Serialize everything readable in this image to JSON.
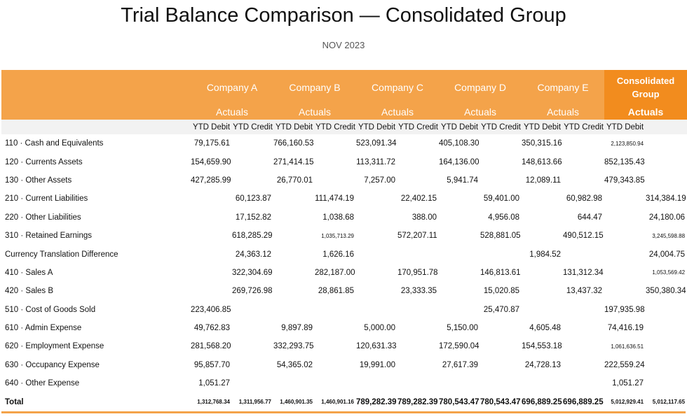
{
  "title": "Trial Balance Comparison — Consolidated Group",
  "subtitle": "NOV 2023",
  "companies": [
    {
      "name": "Company A",
      "scenario": "Actuals"
    },
    {
      "name": "Company B",
      "scenario": "Actuals"
    },
    {
      "name": "Company C",
      "scenario": "Actuals"
    },
    {
      "name": "Company D",
      "scenario": "Actuals"
    },
    {
      "name": "Company E",
      "scenario": "Actuals"
    },
    {
      "name": "Consolidated Group",
      "scenario": "Actuals"
    }
  ],
  "subheaders": [
    "YTD Debit",
    "YTD Credit",
    "YTD Debit",
    "YTD Credit",
    "YTD Debit",
    "YTD Credit",
    "YTD Debit",
    "YTD Credit",
    "YTD Debit",
    "YTD Credit",
    "YTD Debit",
    ""
  ],
  "rows": [
    {
      "label": "110 · Cash and Equivalents",
      "values": [
        "79,175.61",
        "",
        "766,160.53",
        "",
        "523,091.34",
        "",
        "405,108.30",
        "",
        "350,315.16",
        "",
        "2,123,850.94",
        ""
      ]
    },
    {
      "label": "120 · Currents Assets",
      "values": [
        "154,659.90",
        "",
        "271,414.15",
        "",
        "113,311.72",
        "",
        "164,136.00",
        "",
        "148,613.66",
        "",
        "852,135.43",
        ""
      ]
    },
    {
      "label": "130 · Other Assets",
      "values": [
        "427,285.99",
        "",
        "26,770.01",
        "",
        "7,257.00",
        "",
        "5,941.74",
        "",
        "12,089.11",
        "",
        "479,343.85",
        ""
      ]
    },
    {
      "label": "210 · Current Liabilities",
      "values": [
        "",
        "60,123.87",
        "",
        "111,474.19",
        "",
        "22,402.15",
        "",
        "59,401.00",
        "",
        "60,982.98",
        "",
        "314,384.19"
      ]
    },
    {
      "label": "220 · Other Liabilities",
      "values": [
        "",
        "17,152.82",
        "",
        "1,038.68",
        "",
        "388.00",
        "",
        "4,956.08",
        "",
        "644.47",
        "",
        "24,180.06"
      ]
    },
    {
      "label": "310 · Retained Earnings",
      "values": [
        "",
        "618,285.29",
        "",
        "1,035,713.29",
        "",
        "572,207.11",
        "",
        "528,881.05",
        "",
        "490,512.15",
        "",
        "3,245,598.88"
      ]
    },
    {
      "label": "Currency Translation Difference",
      "values": [
        "",
        "24,363.12",
        "",
        "1,626.16",
        "",
        "",
        "",
        "",
        "1,984.52",
        "",
        "",
        "24,004.75"
      ]
    },
    {
      "label": "410 · Sales A",
      "values": [
        "",
        "322,304.69",
        "",
        "282,187.00",
        "",
        "170,951.78",
        "",
        "146,813.61",
        "",
        "131,312.34",
        "",
        "1,053,569.42"
      ]
    },
    {
      "label": "420 · Sales B",
      "values": [
        "",
        "269,726.98",
        "",
        "28,861.85",
        "",
        "23,333.35",
        "",
        "15,020.85",
        "",
        "13,437.32",
        "",
        "350,380.34"
      ]
    },
    {
      "label": "510 · Cost of Goods Sold",
      "values": [
        "223,406.85",
        "",
        "",
        "",
        "",
        "",
        "",
        "25,470.87",
        "",
        "",
        "197,935.98",
        ""
      ]
    },
    {
      "label": "610 · Admin Expense",
      "values": [
        "49,762.83",
        "",
        "9,897.89",
        "",
        "5,000.00",
        "",
        "5,150.00",
        "",
        "4,605.48",
        "",
        "74,416.19",
        ""
      ]
    },
    {
      "label": "620 · Employment Expense",
      "values": [
        "281,568.20",
        "",
        "332,293.75",
        "",
        "120,631.33",
        "",
        "172,590.04",
        "",
        "154,553.18",
        "",
        "1,061,636.51",
        ""
      ]
    },
    {
      "label": "630 · Occupancy Expense",
      "values": [
        "95,857.70",
        "",
        "54,365.02",
        "",
        "19,991.00",
        "",
        "27,617.39",
        "",
        "24,728.13",
        "",
        "222,559.24",
        ""
      ]
    },
    {
      "label": "640 · Other Expense",
      "values": [
        "1,051.27",
        "",
        "",
        "",
        "",
        "",
        "",
        "",
        "",
        "",
        "1,051.27",
        ""
      ]
    }
  ],
  "total": {
    "label": "Total",
    "values": [
      "1,312,768.34",
      "1,311,956.77",
      "1,460,901.35",
      "1,460,901.16",
      "789,282.39",
      "789,282.39",
      "780,543.47",
      "780,543.47",
      "696,889.25",
      "696,889.25",
      "5,012,929.41",
      "5,012,117.65"
    ]
  },
  "colors": {
    "header": "#f4a34a",
    "consolidated_header": "#f28c1e",
    "subheader_bg": "#f2f2f2"
  }
}
